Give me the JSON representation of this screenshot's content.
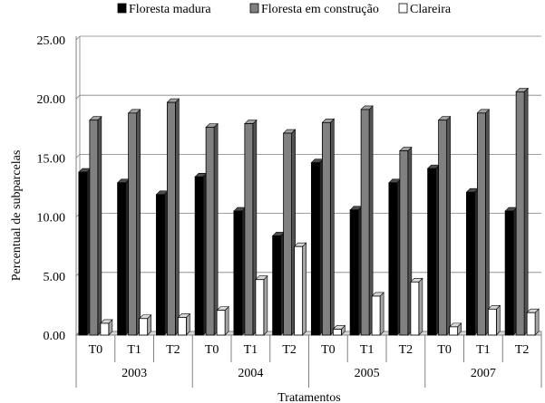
{
  "chart_data": {
    "type": "bar",
    "xlabel": "Tratamentos",
    "ylabel": "Percentual de subparcelas",
    "ylim": [
      0,
      25
    ],
    "yticks": [
      "0.00",
      "5.00",
      "10.00",
      "15.00",
      "20.00",
      "25.00"
    ],
    "grid": true,
    "legend_position": "top",
    "groups": [
      {
        "year": "2003",
        "categories": [
          "T0",
          "T1",
          "T2"
        ]
      },
      {
        "year": "2004",
        "categories": [
          "T0",
          "T1",
          "T2"
        ]
      },
      {
        "year": "2005",
        "categories": [
          "T0",
          "T1",
          "T2"
        ]
      },
      {
        "year": "2007",
        "categories": [
          "T0",
          "T1",
          "T2"
        ]
      }
    ],
    "series": [
      {
        "name": "Floresta madura",
        "color": "#000000",
        "values": [
          13.8,
          12.9,
          11.9,
          13.4,
          10.5,
          8.4,
          14.6,
          10.6,
          12.9,
          14.1,
          12.1,
          10.5
        ]
      },
      {
        "name": "Floresta em construção",
        "color": "#808080",
        "values": [
          18.2,
          18.8,
          19.7,
          17.6,
          17.9,
          17.1,
          18.0,
          19.1,
          15.6,
          18.2,
          18.8,
          20.6
        ]
      },
      {
        "name": "Clareira",
        "color": "#ffffff",
        "values": [
          1.0,
          1.4,
          1.5,
          2.1,
          4.7,
          7.5,
          0.5,
          3.3,
          4.5,
          0.7,
          2.2,
          1.9
        ]
      }
    ]
  }
}
